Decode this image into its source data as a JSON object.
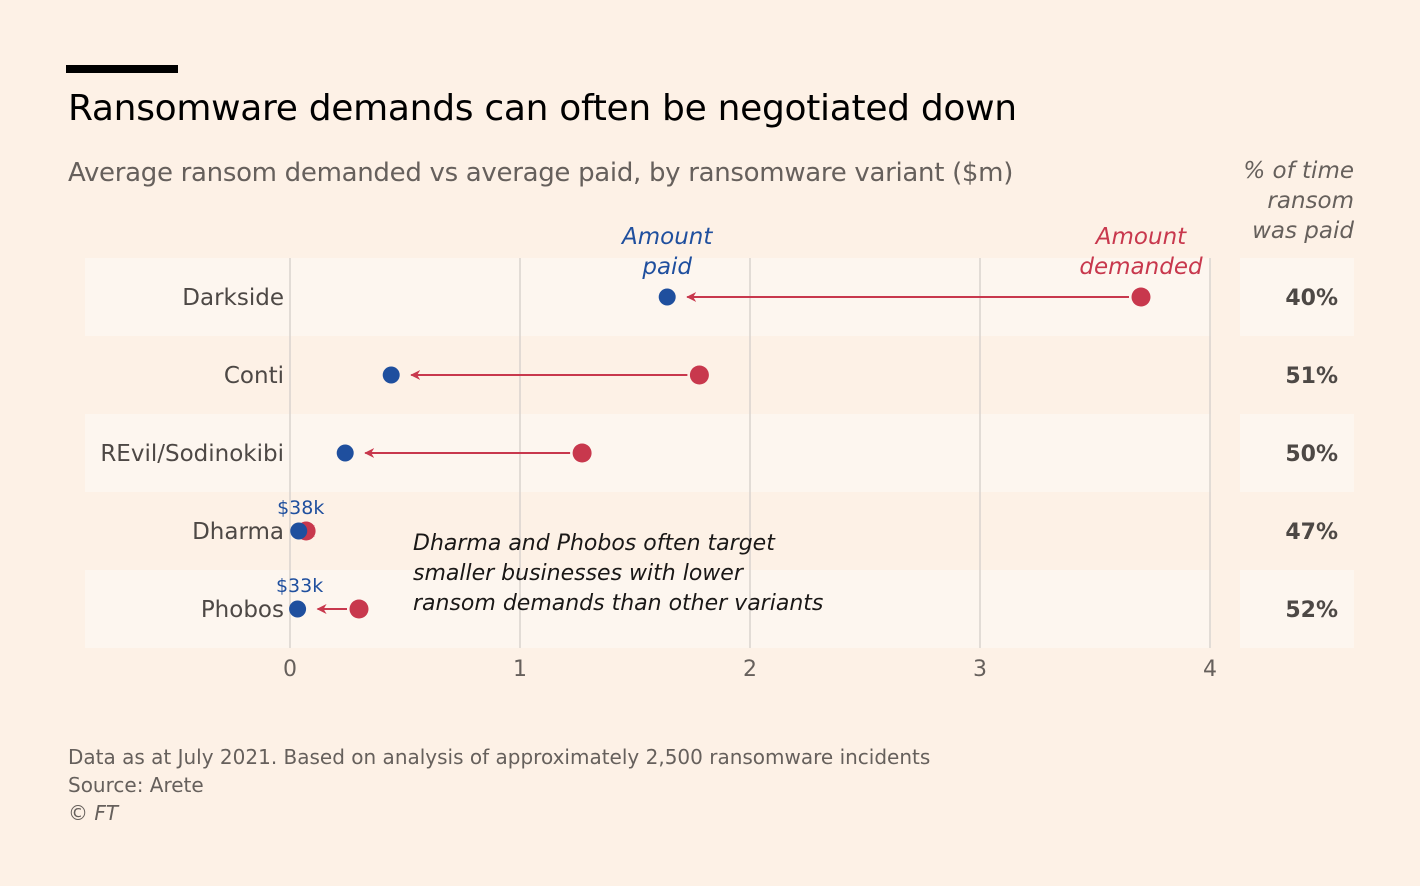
{
  "header": {
    "title": "Ransomware demands can often be negotiated down",
    "subtitle": "Average ransom demanded vs average paid, by ransomware variant ($m)",
    "pct_header": [
      "% of time",
      "ransom",
      "was paid"
    ]
  },
  "colors": {
    "paid": "#1f4f9e",
    "demanded": "#c8384d",
    "background": "#fdf1e6",
    "band": "#fdf6ef",
    "grid": "#d9d3cd"
  },
  "chart_data": {
    "type": "dumbbell",
    "x_range": [
      0,
      4
    ],
    "x_ticks": [
      "0",
      "1",
      "2",
      "3",
      "4"
    ],
    "x_tick_values": [
      0,
      1,
      2,
      3,
      4
    ],
    "series_labels": {
      "paid": [
        "Amount",
        "paid"
      ],
      "demanded": [
        "Amount",
        "demanded"
      ]
    },
    "rows": [
      {
        "name": "Darkside",
        "paid": 1.64,
        "demanded": 3.7,
        "pct_paid": "40%"
      },
      {
        "name": "Conti",
        "paid": 0.44,
        "demanded": 1.78,
        "pct_paid": "51%"
      },
      {
        "name": "REvil/Sodinokibi",
        "paid": 0.24,
        "demanded": 1.27,
        "pct_paid": "50%"
      },
      {
        "name": "Dharma",
        "paid": 0.038,
        "demanded": 0.07,
        "pct_paid": "47%",
        "paid_label": "$38k"
      },
      {
        "name": "Phobos",
        "paid": 0.033,
        "demanded": 0.3,
        "pct_paid": "52%",
        "paid_label": "$33k"
      }
    ],
    "annotation": [
      "Dharma and Phobos often target",
      "smaller businesses with lower",
      "ransom demands than other variants"
    ]
  },
  "footer": {
    "note": "Data as at July 2021. Based on analysis of approximately 2,500 ransomware incidents",
    "source": "Source: Arete",
    "copyright": "© FT"
  }
}
